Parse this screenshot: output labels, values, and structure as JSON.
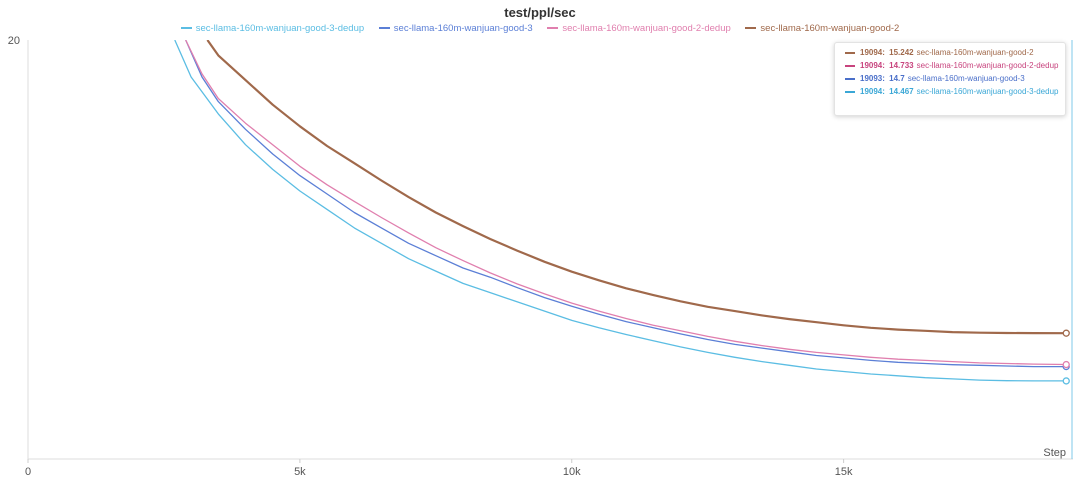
{
  "chart_data": {
    "type": "line",
    "title": "test/ppl/sec",
    "xlabel": "Step",
    "ylabel": "",
    "xlim": [
      0,
      19200
    ],
    "ylim": [
      13.2,
      20
    ],
    "xticks": [
      0,
      5000,
      10000,
      15000
    ],
    "xtick_labels": [
      "0",
      "5k",
      "10k",
      "15k"
    ],
    "yticks": [
      20
    ],
    "ytick_labels": [
      "20"
    ],
    "grid": false,
    "legend_position": "top",
    "series": [
      {
        "name": "sec-llama-160m-wanjuan-good-3-dedup",
        "color": "#5bbde3",
        "x": [
          2700,
          3000,
          3500,
          4000,
          4500,
          5000,
          5500,
          6000,
          6500,
          7000,
          7500,
          8000,
          8500,
          9000,
          9500,
          10000,
          10500,
          11000,
          11500,
          12000,
          12500,
          13000,
          13500,
          14000,
          14500,
          15000,
          15500,
          16000,
          16500,
          17000,
          17500,
          18000,
          18500,
          19094
        ],
        "y": [
          20.0,
          19.4,
          18.8,
          18.3,
          17.9,
          17.55,
          17.25,
          16.95,
          16.7,
          16.45,
          16.25,
          16.05,
          15.9,
          15.75,
          15.6,
          15.45,
          15.33,
          15.22,
          15.12,
          15.02,
          14.93,
          14.85,
          14.78,
          14.72,
          14.66,
          14.62,
          14.58,
          14.55,
          14.52,
          14.5,
          14.48,
          14.47,
          14.467,
          14.467
        ]
      },
      {
        "name": "sec-llama-160m-wanjuan-good-3",
        "color": "#5b7fd6",
        "x": [
          2900,
          3200,
          3500,
          4000,
          4500,
          5000,
          5500,
          6000,
          6500,
          7000,
          7500,
          8000,
          8500,
          9000,
          9500,
          10000,
          10500,
          11000,
          11500,
          12000,
          12500,
          13000,
          13500,
          14000,
          14500,
          15000,
          15500,
          16000,
          16500,
          17000,
          17500,
          18000,
          18500,
          19093
        ],
        "y": [
          20.0,
          19.4,
          19.0,
          18.55,
          18.15,
          17.8,
          17.5,
          17.2,
          16.95,
          16.7,
          16.5,
          16.3,
          16.15,
          15.98,
          15.82,
          15.68,
          15.55,
          15.43,
          15.33,
          15.23,
          15.14,
          15.06,
          15.0,
          14.94,
          14.88,
          14.84,
          14.8,
          14.77,
          14.75,
          14.73,
          14.72,
          14.71,
          14.7,
          14.7
        ]
      },
      {
        "name": "sec-llama-160m-wanjuan-good-2-dedup",
        "color": "#e07fae",
        "x": [
          2900,
          3200,
          3500,
          4000,
          4500,
          5000,
          5500,
          6000,
          6500,
          7000,
          7500,
          8000,
          8500,
          9000,
          9500,
          10000,
          10500,
          11000,
          11500,
          12000,
          12500,
          13000,
          13500,
          14000,
          14500,
          15000,
          15500,
          16000,
          16500,
          17000,
          17500,
          18000,
          18500,
          19094
        ],
        "y": [
          20.0,
          19.45,
          19.05,
          18.65,
          18.3,
          17.95,
          17.65,
          17.38,
          17.12,
          16.87,
          16.63,
          16.42,
          16.22,
          16.04,
          15.88,
          15.73,
          15.6,
          15.48,
          15.37,
          15.28,
          15.19,
          15.11,
          15.04,
          14.98,
          14.93,
          14.89,
          14.85,
          14.82,
          14.8,
          14.78,
          14.76,
          14.75,
          14.74,
          14.733
        ]
      },
      {
        "name": "sec-llama-160m-wanjuan-good-2",
        "color": "#a0694b",
        "x": [
          3300,
          3500,
          4000,
          4500,
          5000,
          5500,
          6000,
          6500,
          7000,
          7500,
          8000,
          8500,
          9000,
          9500,
          10000,
          10500,
          11000,
          11500,
          12000,
          12500,
          13000,
          13500,
          14000,
          14500,
          15000,
          15500,
          16000,
          16500,
          17000,
          17500,
          18000,
          18500,
          19094
        ],
        "y": [
          20.0,
          19.75,
          19.35,
          18.95,
          18.6,
          18.28,
          18.0,
          17.72,
          17.45,
          17.2,
          16.98,
          16.77,
          16.58,
          16.4,
          16.24,
          16.1,
          15.97,
          15.86,
          15.76,
          15.67,
          15.6,
          15.53,
          15.47,
          15.42,
          15.37,
          15.33,
          15.3,
          15.28,
          15.26,
          15.25,
          15.245,
          15.243,
          15.242
        ]
      }
    ],
    "tooltip": {
      "rows": [
        {
          "step": "19094",
          "value": "15.242",
          "name": "sec-llama-160m-wanjuan-good-2",
          "color": "#a0694b"
        },
        {
          "step": "19094",
          "value": "14.733",
          "name": "sec-llama-160m-wanjuan-good-2-dedup",
          "color": "#c8447e"
        },
        {
          "step": "19093",
          "value": "14.7",
          "name": "sec-llama-160m-wanjuan-good-3",
          "color": "#4a6fc9"
        },
        {
          "step": "19094",
          "value": "14.467",
          "name": "sec-llama-160m-wanjuan-good-3-dedup",
          "color": "#3aa7d6"
        }
      ]
    }
  }
}
